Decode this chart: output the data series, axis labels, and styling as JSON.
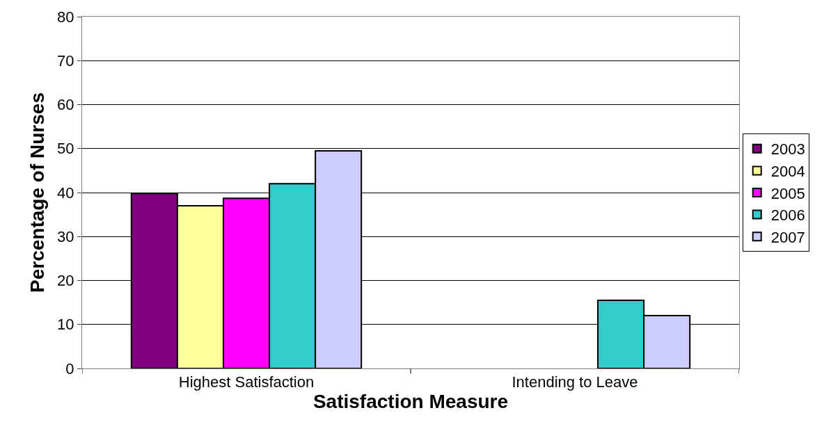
{
  "chart_data": {
    "type": "bar",
    "xlabel": "Satisfaction Measure",
    "ylabel": "Percentage of Nurses",
    "categories": [
      "Highest Satisfaction",
      "Intending to Leave"
    ],
    "series": [
      {
        "name": "2003",
        "color": "#800080",
        "values": [
          39.8,
          null
        ]
      },
      {
        "name": "2004",
        "color": "#ffff99",
        "values": [
          37.0,
          null
        ]
      },
      {
        "name": "2005",
        "color": "#ff00ff",
        "values": [
          38.7,
          null
        ]
      },
      {
        "name": "2006",
        "color": "#33cccc",
        "values": [
          42.0,
          15.5
        ]
      },
      {
        "name": "2007",
        "color": "#ccccff",
        "values": [
          49.5,
          12.0
        ]
      }
    ],
    "ylim": [
      0,
      80
    ],
    "yticks": [
      0,
      10,
      20,
      30,
      40,
      50,
      60,
      70,
      80
    ],
    "grid": "y",
    "legend": "right"
  }
}
